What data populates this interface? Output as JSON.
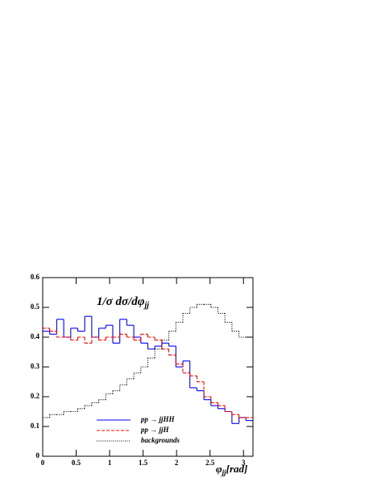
{
  "chart_data": {
    "type": "histogram",
    "title": [
      "1/σ dσ/dφ",
      "jj"
    ],
    "xlabel": [
      "φ",
      "jj",
      "[rad]"
    ],
    "bins": [
      0,
      0.1047,
      0.2094,
      0.3142,
      0.4189,
      0.5236,
      0.6283,
      0.733,
      0.8378,
      0.9425,
      1.0472,
      1.1519,
      1.2566,
      1.3614,
      1.4661,
      1.5708,
      1.6755,
      1.7802,
      1.885,
      1.9897,
      2.0944,
      2.1991,
      2.3038,
      2.4086,
      2.5133,
      2.618,
      2.7227,
      2.8274,
      2.9322,
      3.0369,
      3.1416
    ],
    "series": [
      {
        "name": "pp → jjHH",
        "color": "#0000ff",
        "linestyle": "solid",
        "values": [
          0.42,
          0.41,
          0.46,
          0.4,
          0.43,
          0.42,
          0.47,
          0.4,
          0.43,
          0.44,
          0.38,
          0.46,
          0.44,
          0.4,
          0.38,
          0.36,
          0.37,
          0.38,
          0.37,
          0.3,
          0.32,
          0.23,
          0.22,
          0.19,
          0.17,
          0.16,
          0.15,
          0.11,
          0.13,
          0.12
        ]
      },
      {
        "name": "pp → jjH",
        "color": "#ff0000",
        "linestyle": "dashed",
        "values": [
          0.43,
          0.42,
          0.4,
          0.4,
          0.39,
          0.4,
          0.38,
          0.4,
          0.39,
          0.4,
          0.4,
          0.41,
          0.4,
          0.39,
          0.41,
          0.4,
          0.39,
          0.36,
          0.34,
          0.31,
          0.28,
          0.27,
          0.25,
          0.2,
          0.18,
          0.17,
          0.15,
          0.14,
          0.13,
          0.13
        ]
      },
      {
        "name": "backgrounds",
        "color": "#000000",
        "linestyle": "dotted",
        "values": [
          0.13,
          0.14,
          0.14,
          0.15,
          0.15,
          0.16,
          0.17,
          0.18,
          0.19,
          0.21,
          0.22,
          0.24,
          0.26,
          0.28,
          0.3,
          0.33,
          0.36,
          0.39,
          0.42,
          0.45,
          0.48,
          0.5,
          0.51,
          0.51,
          0.5,
          0.48,
          0.45,
          0.42,
          0.4,
          0.4
        ]
      }
    ],
    "xlim": [
      0,
      3.1416
    ],
    "ylim": [
      0,
      0.6
    ],
    "xticks": [
      0,
      0.5,
      1,
      1.5,
      2,
      2.5,
      3
    ],
    "yticks": [
      0,
      0.1,
      0.2,
      0.3,
      0.4,
      0.5,
      0.6
    ]
  }
}
